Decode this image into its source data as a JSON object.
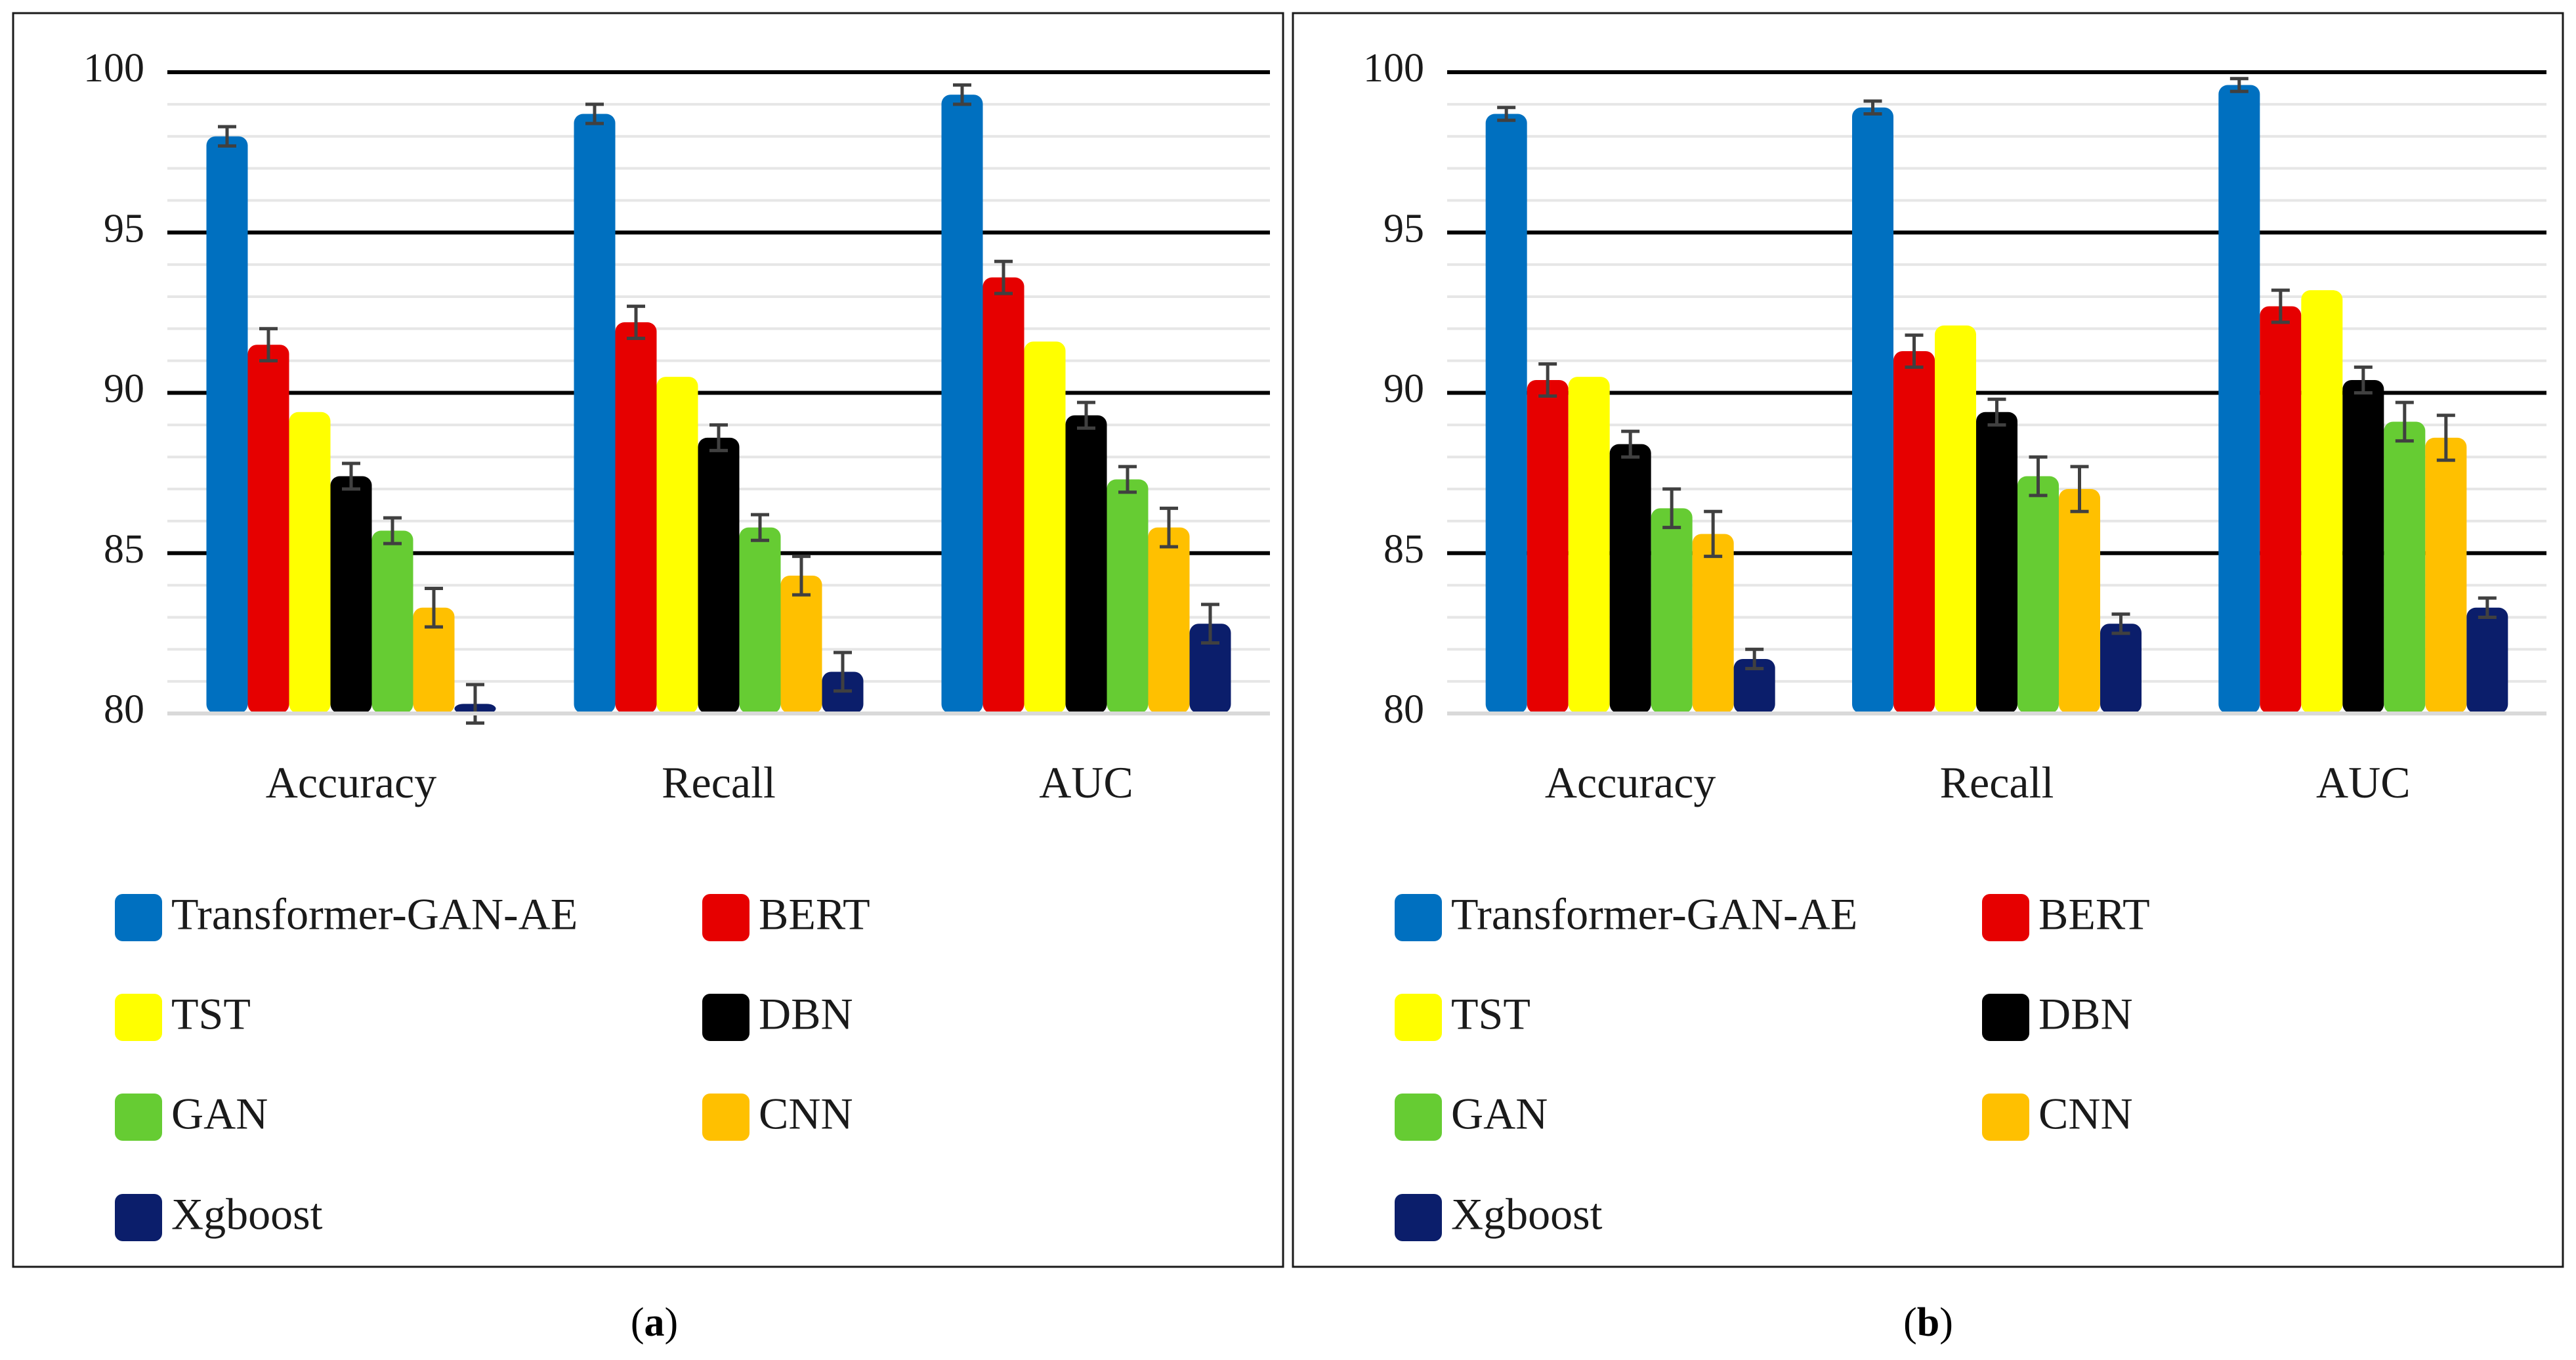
{
  "figure": {
    "series_colors": {
      "Transformer-GAN-AE": "#0070C0",
      "BERT": "#E60000",
      "TST": "#FFFF00",
      "DBN": "#000000",
      "GAN": "#66CC33",
      "CNN": "#FFC000",
      "Xgboost": "#0B1E6B"
    }
  },
  "chart_data": [
    {
      "type": "bar",
      "panel_label": "a",
      "categories": [
        "Accuracy",
        "Recall",
        "AUC"
      ],
      "ylim": [
        80,
        100
      ],
      "yticks": [
        80,
        85,
        90,
        95,
        100
      ],
      "grid": true,
      "error_bars": true,
      "legend_position": "bottom",
      "series": [
        {
          "name": "Transformer-GAN-AE",
          "values": [
            98.0,
            98.7,
            99.3
          ],
          "errors": [
            0.3,
            0.3,
            0.3
          ]
        },
        {
          "name": "BERT",
          "values": [
            91.5,
            92.2,
            93.6
          ],
          "errors": [
            0.5,
            0.5,
            0.5
          ]
        },
        {
          "name": "TST",
          "values": [
            89.4,
            90.5,
            91.6
          ],
          "errors": [
            null,
            null,
            null
          ]
        },
        {
          "name": "DBN",
          "values": [
            87.4,
            88.6,
            89.3
          ],
          "errors": [
            0.4,
            0.4,
            0.4
          ]
        },
        {
          "name": "GAN",
          "values": [
            85.7,
            85.8,
            87.3
          ],
          "errors": [
            0.4,
            0.4,
            0.4
          ]
        },
        {
          "name": "CNN",
          "values": [
            83.3,
            84.3,
            85.8
          ],
          "errors": [
            0.6,
            0.6,
            0.6
          ]
        },
        {
          "name": "Xgboost",
          "values": [
            80.3,
            81.3,
            82.8
          ],
          "errors": [
            0.6,
            0.6,
            0.6
          ]
        }
      ]
    },
    {
      "type": "bar",
      "panel_label": "b",
      "categories": [
        "Accuracy",
        "Recall",
        "AUC"
      ],
      "ylim": [
        80,
        100
      ],
      "yticks": [
        80,
        85,
        90,
        95,
        100
      ],
      "grid": true,
      "error_bars": true,
      "legend_position": "bottom",
      "series": [
        {
          "name": "Transformer-GAN-AE",
          "values": [
            98.7,
            98.9,
            99.6
          ],
          "errors": [
            0.2,
            0.2,
            0.2
          ]
        },
        {
          "name": "BERT",
          "values": [
            90.4,
            91.3,
            92.7
          ],
          "errors": [
            0.5,
            0.5,
            0.5
          ]
        },
        {
          "name": "TST",
          "values": [
            90.5,
            92.1,
            93.2
          ],
          "errors": [
            null,
            null,
            null
          ]
        },
        {
          "name": "DBN",
          "values": [
            88.4,
            89.4,
            90.4
          ],
          "errors": [
            0.4,
            0.4,
            0.4
          ]
        },
        {
          "name": "GAN",
          "values": [
            86.4,
            87.4,
            89.1
          ],
          "errors": [
            0.6,
            0.6,
            0.6
          ]
        },
        {
          "name": "CNN",
          "values": [
            85.6,
            87.0,
            88.6
          ],
          "errors": [
            0.7,
            0.7,
            0.7
          ]
        },
        {
          "name": "Xgboost",
          "values": [
            81.7,
            82.8,
            83.3
          ],
          "errors": [
            0.3,
            0.3,
            0.3
          ]
        }
      ]
    }
  ]
}
